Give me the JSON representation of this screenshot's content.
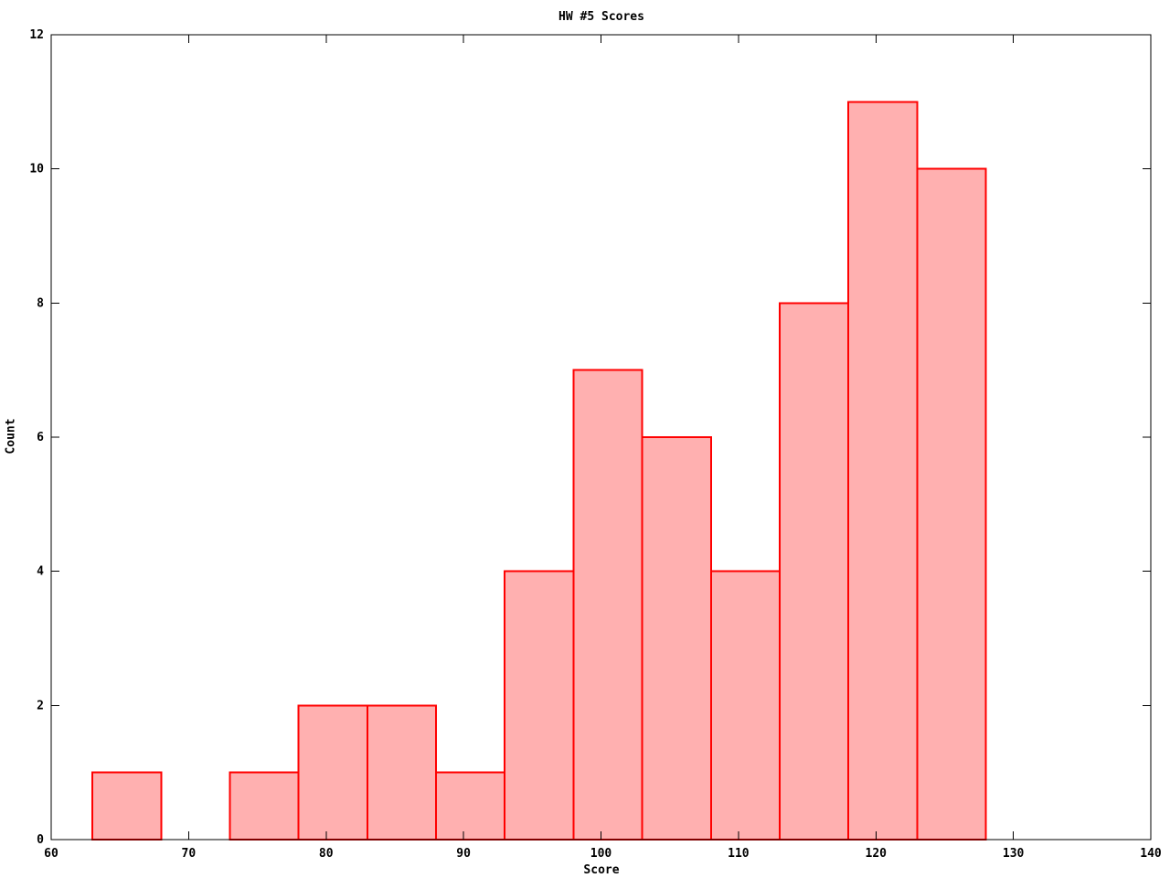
{
  "chart_data": {
    "type": "bar",
    "subtype": "histogram",
    "title": "HW #5 Scores",
    "xlabel": "Score",
    "ylabel": "Count",
    "xlim": [
      60,
      140
    ],
    "ylim": [
      0,
      12
    ],
    "xticks": [
      60,
      70,
      80,
      90,
      100,
      110,
      120,
      130,
      140
    ],
    "yticks": [
      0,
      2,
      4,
      6,
      8,
      10,
      12
    ],
    "grid": false,
    "legend": null,
    "bin_width": 5,
    "bins": [
      {
        "x0": 63,
        "x1": 68,
        "count": 1
      },
      {
        "x0": 68,
        "x1": 73,
        "count": 0
      },
      {
        "x0": 73,
        "x1": 78,
        "count": 1
      },
      {
        "x0": 78,
        "x1": 83,
        "count": 2
      },
      {
        "x0": 83,
        "x1": 88,
        "count": 2
      },
      {
        "x0": 88,
        "x1": 93,
        "count": 1
      },
      {
        "x0": 93,
        "x1": 98,
        "count": 4
      },
      {
        "x0": 98,
        "x1": 103,
        "count": 7
      },
      {
        "x0": 103,
        "x1": 108,
        "count": 6
      },
      {
        "x0": 108,
        "x1": 113,
        "count": 4
      },
      {
        "x0": 113,
        "x1": 118,
        "count": 8
      },
      {
        "x0": 118,
        "x1": 123,
        "count": 11
      },
      {
        "x0": 123,
        "x1": 128,
        "count": 10
      }
    ],
    "colors": {
      "bar_fill": "#ffb0b0",
      "bar_edge": "#ff0000",
      "axis": "#000000",
      "text": "#000000",
      "background": "#ffffff"
    }
  }
}
